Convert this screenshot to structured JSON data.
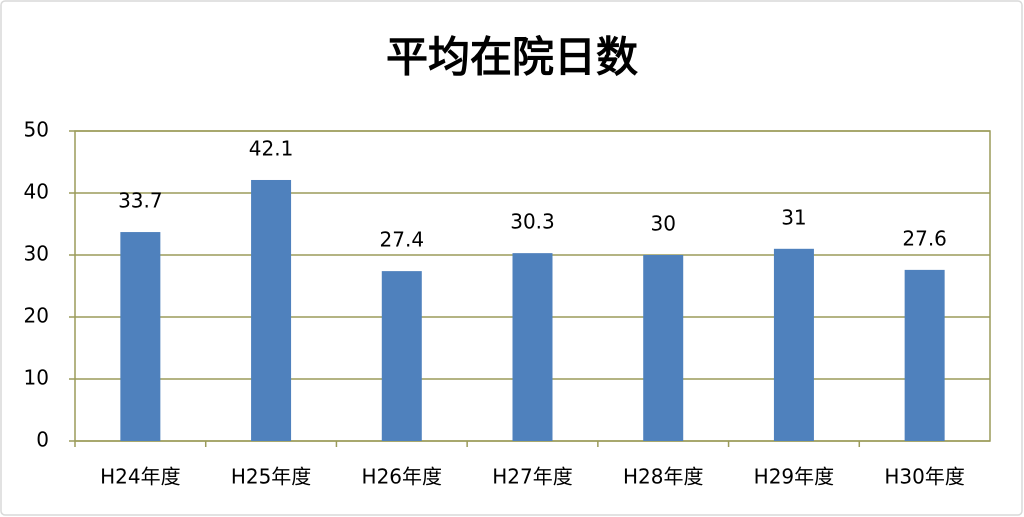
{
  "chart_data": {
    "type": "bar",
    "title": "平均在院日数",
    "categories": [
      "H24年度",
      "H25年度",
      "H26年度",
      "H27年度",
      "H28年度",
      "H29年度",
      "H30年度"
    ],
    "values": [
      33.7,
      42.1,
      27.4,
      30.3,
      30,
      31,
      27.6
    ],
    "color": "#4f81bd",
    "ylim": [
      0,
      50
    ],
    "yticks": [
      0,
      10,
      20,
      30,
      40,
      50
    ],
    "grid": true
  }
}
